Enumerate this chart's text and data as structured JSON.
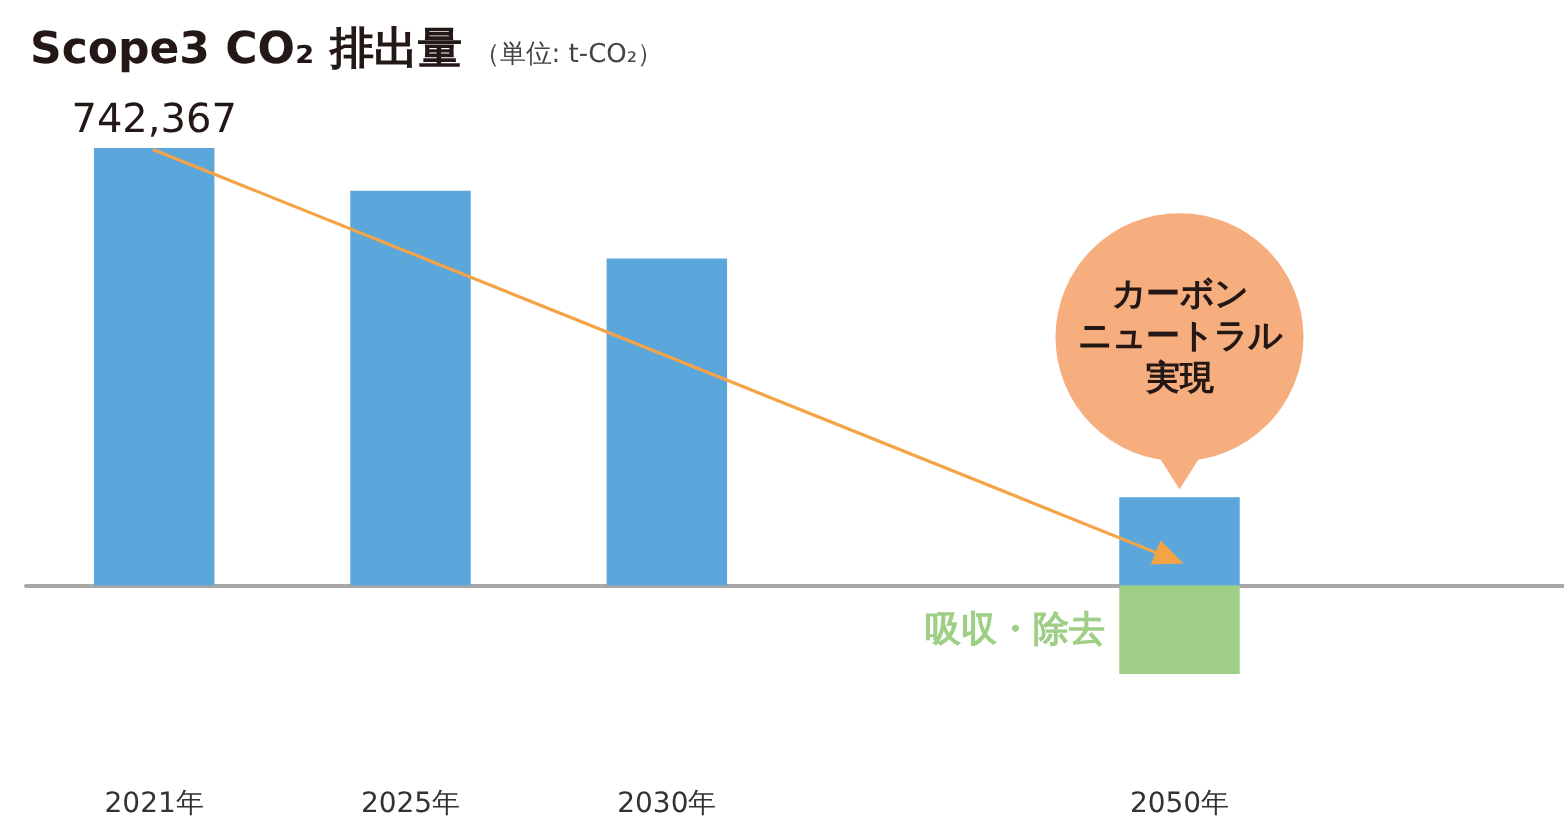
{
  "chart_data": {
    "type": "bar",
    "title": "Scope3 CO₂ 排出量",
    "subtitle": "（単位: t-CO₂）",
    "categories": [
      "2021年",
      "2025年",
      "2030年",
      null,
      "2050年",
      null
    ],
    "stacked": true,
    "grid": false,
    "legend": false,
    "tick_labels": "x",
    "ylim": [
      -150000,
      742367
    ],
    "series": [
      {
        "color": "#5ba7db",
        "values": [
          742367,
          670000,
          555000,
          null,
          150000,
          null
        ],
        "value_labels": [
          "742,367",
          null,
          null,
          null,
          null,
          null
        ]
      },
      {
        "name": "吸収・除去",
        "color": "#9fcf86",
        "values": [
          null,
          null,
          null,
          null,
          -150000,
          null
        ]
      }
    ],
    "annotations": [
      {
        "text": "カーボンニュートラル実現",
        "x": "2050年",
        "y": 150000
      }
    ]
  }
}
